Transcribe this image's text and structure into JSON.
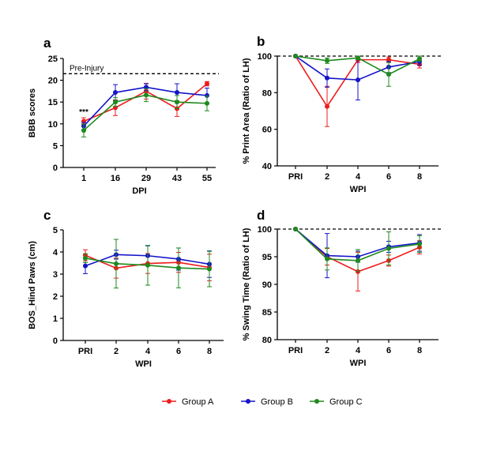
{
  "colors": {
    "Group A": "#ee1c1c",
    "Group B": "#1414c8",
    "Group C": "#1e8a1e"
  },
  "legend": [
    "Group A",
    "Group B",
    "Group C"
  ],
  "chart_data": [
    {
      "panel": "a",
      "type": "line",
      "xlabel": "DPI",
      "ylabel": "BBB scores",
      "categories": [
        "1",
        "16",
        "29",
        "43",
        "55"
      ],
      "ylim": [
        0,
        25
      ],
      "yticks": [
        0,
        5,
        10,
        15,
        20,
        25
      ],
      "reference": {
        "value": 21.5,
        "label": "Pre-Injury"
      },
      "annotation": {
        "text": "***",
        "category": "1"
      },
      "series": [
        {
          "name": "Group A",
          "values": [
            10.6,
            13.7,
            17.5,
            13.5,
            19.2
          ],
          "errors": [
            0.8,
            1.8,
            1.8,
            1.8,
            0.5
          ]
        },
        {
          "name": "Group B",
          "values": [
            9.5,
            17.2,
            18.4,
            17.2,
            16.5
          ],
          "errors": [
            0.8,
            1.8,
            0.8,
            2.0,
            1.7
          ]
        },
        {
          "name": "Group C",
          "values": [
            8.5,
            15.0,
            16.6,
            15.0,
            14.7
          ],
          "errors": [
            1.5,
            1.0,
            1.5,
            1.5,
            1.7
          ]
        }
      ]
    },
    {
      "panel": "b",
      "type": "line",
      "xlabel": "WPI",
      "ylabel": "% Print Area (Ratio of LH)",
      "categories": [
        "PRI",
        "2",
        "4",
        "6",
        "8"
      ],
      "ylim": [
        40,
        100
      ],
      "yticks": [
        40,
        60,
        80,
        100
      ],
      "reference": {
        "value": 100
      },
      "series": [
        {
          "name": "Group A",
          "values": [
            100,
            72.5,
            98.0,
            98.0,
            95.5
          ],
          "errors": [
            0,
            11,
            1.5,
            1.5,
            2
          ]
        },
        {
          "name": "Group B",
          "values": [
            100,
            88.0,
            87.0,
            94.0,
            97.0
          ],
          "errors": [
            0,
            5,
            11,
            3,
            2
          ]
        },
        {
          "name": "Group C",
          "values": [
            100,
            97.5,
            99.0,
            90.0,
            98.5
          ],
          "errors": [
            0,
            1.5,
            1,
            6.5,
            1.5
          ]
        }
      ]
    },
    {
      "panel": "c",
      "type": "line",
      "xlabel": "WPI",
      "ylabel": "BOS_Hind Paws (cm)",
      "categories": [
        "PRI",
        "2",
        "4",
        "6",
        "8"
      ],
      "ylim": [
        0,
        5
      ],
      "yticks": [
        0,
        1,
        2,
        3,
        4,
        5
      ],
      "series": [
        {
          "name": "Group A",
          "values": [
            3.85,
            3.27,
            3.48,
            3.53,
            3.3
          ],
          "errors": [
            0.25,
            0.45,
            0.45,
            0.45,
            0.6
          ]
        },
        {
          "name": "Group B",
          "values": [
            3.37,
            3.88,
            3.83,
            3.68,
            3.45
          ],
          "errors": [
            0.35,
            0.2,
            0.45,
            0.5,
            0.6
          ]
        },
        {
          "name": "Group C",
          "values": [
            3.72,
            3.47,
            3.4,
            3.28,
            3.23
          ],
          "errors": [
            0.2,
            1.1,
            0.9,
            0.9,
            0.8
          ]
        }
      ]
    },
    {
      "panel": "d",
      "type": "line",
      "xlabel": "WPI",
      "ylabel": "% Swing Time (Ratio of LH)",
      "categories": [
        "PRI",
        "2",
        "4",
        "6",
        "8"
      ],
      "ylim": [
        80,
        100
      ],
      "yticks": [
        80,
        85,
        90,
        95,
        100
      ],
      "reference": {
        "value": 100
      },
      "series": [
        {
          "name": "Group A",
          "values": [
            100,
            95.0,
            92.3,
            94.3,
            96.7
          ],
          "errors": [
            0,
            1.5,
            3.5,
            1.0,
            1.2
          ]
        },
        {
          "name": "Group B",
          "values": [
            100,
            95.2,
            95.0,
            96.8,
            97.5
          ],
          "errors": [
            0,
            4.0,
            1.0,
            1.0,
            1.5
          ]
        },
        {
          "name": "Group C",
          "values": [
            100,
            94.6,
            94.3,
            96.5,
            97.3
          ],
          "errors": [
            0,
            2.0,
            2.0,
            3.0,
            1.5
          ]
        }
      ]
    }
  ]
}
